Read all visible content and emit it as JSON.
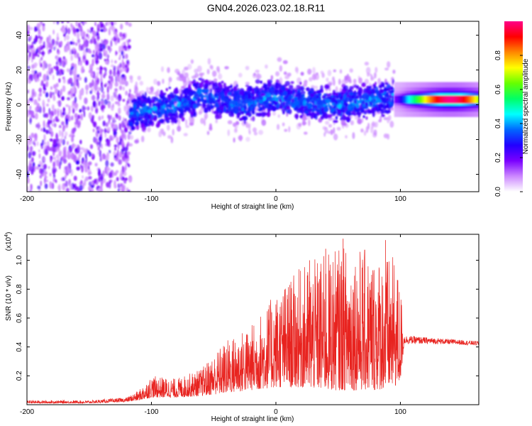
{
  "title": "GN04.2026.023.02.18.R11",
  "colors": {
    "snr_line": "#e8231f",
    "axis": "#000000",
    "colormap": [
      "#ffffff",
      "#cc88ff",
      "#7a00ff",
      "#2200ff",
      "#0066ff",
      "#00ffff",
      "#00ff66",
      "#66ff00",
      "#ffff00",
      "#ff8800",
      "#ff0000",
      "#ff0088"
    ]
  },
  "chart_data": [
    {
      "type": "heatmap",
      "name": "spectrogram",
      "xlabel": "Height of straight line (km)",
      "ylabel": "Frequency (Hz)",
      "xlim": [
        -200,
        163
      ],
      "ylim": [
        -50,
        48
      ],
      "xticks": [
        -200,
        -100,
        0,
        100
      ],
      "xtick_labels": [
        "-200",
        "-100",
        "0",
        "100"
      ],
      "yticks": [
        -40,
        -20,
        0,
        20,
        40
      ],
      "ytick_labels": [
        "-40",
        "-20",
        "0",
        "20",
        "40"
      ],
      "colorbar": {
        "label": "Normalized spectral amplitude",
        "range": [
          0,
          1
        ],
        "ticks": [
          0.0,
          0.2,
          0.4,
          0.6,
          0.8
        ],
        "tick_labels": [
          "0.0",
          "0.2",
          "0.4",
          "0.6",
          "0.8"
        ]
      },
      "regions": [
        {
          "x_range": [
            -200,
            -117
          ],
          "description": "broadband noise",
          "freq_range": [
            -50,
            48
          ],
          "amplitude": 0.15
        },
        {
          "x_range": [
            -117,
            95
          ],
          "description": "signal band",
          "center_freq": [
            -5,
            -3,
            0,
            5,
            3,
            0,
            5,
            2,
            0,
            3,
            5
          ],
          "center_x": [
            -117,
            -100,
            -80,
            -60,
            -42,
            -25,
            -5,
            20,
            50,
            80,
            95
          ],
          "amplitude": 0.3
        },
        {
          "x_range": [
            95,
            163
          ],
          "description": "carrier line",
          "center_freq": 3,
          "peak_x": 140,
          "peak_amplitude": 0.95
        }
      ]
    },
    {
      "type": "line",
      "name": "snr",
      "xlabel": "Height of straight line (km)",
      "ylabel": "SNR (10 * v/v)",
      "yscale_label": "(x10",
      "yscale_exp": "4",
      "xlim": [
        -200,
        163
      ],
      "ylim": [
        0,
        1.18
      ],
      "xticks": [
        -200,
        -100,
        0,
        100
      ],
      "xtick_labels": [
        "-200",
        "-100",
        "0",
        "100"
      ],
      "yticks": [
        0.2,
        0.4,
        0.6,
        0.8,
        1.0
      ],
      "ytick_labels": [
        "0.2",
        "0.4",
        "0.6",
        "0.8",
        "1.0"
      ],
      "envelope": {
        "x": [
          -200,
          -150,
          -120,
          -110,
          -100,
          -80,
          -60,
          -40,
          -20,
          0,
          20,
          40,
          60,
          80,
          95,
          100,
          103,
          130,
          163
        ],
        "y_max": [
          0.03,
          0.03,
          0.05,
          0.1,
          0.2,
          0.18,
          0.25,
          0.45,
          0.55,
          0.78,
          0.95,
          1.05,
          1.12,
          1.05,
          1.02,
          0.85,
          0.48,
          0.46,
          0.44
        ],
        "y_min": [
          0.01,
          0.01,
          0.02,
          0.03,
          0.05,
          0.05,
          0.06,
          0.08,
          0.1,
          0.12,
          0.12,
          0.1,
          0.1,
          0.1,
          0.12,
          0.15,
          0.42,
          0.42,
          0.41
        ]
      },
      "notable_peaks": [
        {
          "x": 27,
          "y": 1.0
        },
        {
          "x": 54,
          "y": 1.15
        },
        {
          "x": 88,
          "y": 1.14
        },
        {
          "x": 40,
          "y": 1.08
        }
      ]
    }
  ]
}
